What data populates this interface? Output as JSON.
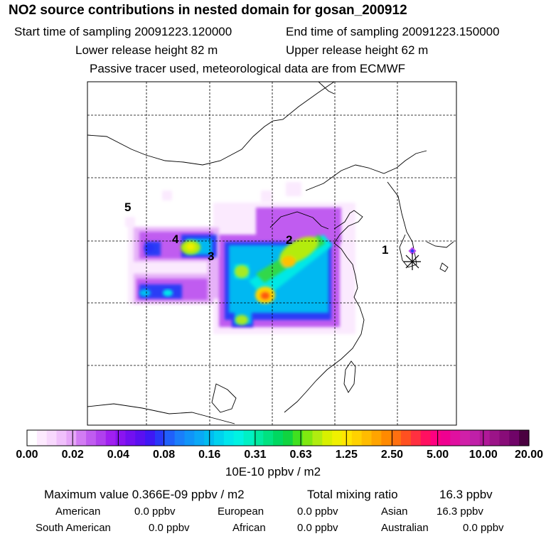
{
  "header": {
    "title": "NO2 source contributions in nested domain for gosan_200912",
    "start_label": "Start time of sampling 20091223.120000",
    "end_label": "End time of sampling 20091223.150000",
    "lower_label": "Lower release height   82 m",
    "upper_label": "Upper release height   62 m",
    "note": "Passive tracer used, meteorological data are from ECMWF"
  },
  "map": {
    "labels": [
      "1",
      "2",
      "3",
      "4",
      "5"
    ]
  },
  "colorbar": {
    "ticks": [
      "0.00",
      "0.02",
      "0.04",
      "0.08",
      "0.16",
      "0.31",
      "0.63",
      "1.25",
      "2.50",
      "5.00",
      "10.00",
      "20.00"
    ],
    "colors": [
      "#ffffff",
      "#fdeafe",
      "#f8d8fd",
      "#f0c0fb",
      "#e6a6f8",
      "#d27cf3",
      "#c05cf0",
      "#b040ee",
      "#a020f0",
      "#8a14f0",
      "#7210f0",
      "#5a10f0",
      "#3e18f4",
      "#2838f8",
      "#2060fa",
      "#1a7efa",
      "#1094f8",
      "#0aa8f6",
      "#00bcf0",
      "#00d2ee",
      "#00e6ec",
      "#00f2e2",
      "#00f0c4",
      "#00eaa0",
      "#00e280",
      "#00d860",
      "#10d440",
      "#40e020",
      "#80e810",
      "#b0ec10",
      "#d8f000",
      "#f0f000",
      "#ffe600",
      "#ffd200",
      "#ffbc00",
      "#ffa400",
      "#ff8a00",
      "#ff7010",
      "#ff5020",
      "#ff3040",
      "#ff1060",
      "#ff0080",
      "#f00090",
      "#e010a0",
      "#d020a8",
      "#c020a8",
      "#b01898",
      "#9c1488",
      "#880c78",
      "#700468",
      "#4a0040"
    ],
    "units": "10E-10 ppbv / m2"
  },
  "stats": {
    "max_label": "Maximum value  0.366E-09 ppbv / m2",
    "total_label": "Total mixing ratio",
    "total_value": "16.3 ppbv"
  },
  "regions": [
    {
      "name": "American",
      "value": "0.0 ppbv"
    },
    {
      "name": "European",
      "value": "0.0 ppbv"
    },
    {
      "name": "Asian",
      "value": "16.3 ppbv"
    },
    {
      "name": "South American",
      "value": "0.0 ppbv"
    },
    {
      "name": "African",
      "value": "0.0 ppbv"
    },
    {
      "name": "Australian",
      "value": "0.0 ppbv"
    }
  ]
}
